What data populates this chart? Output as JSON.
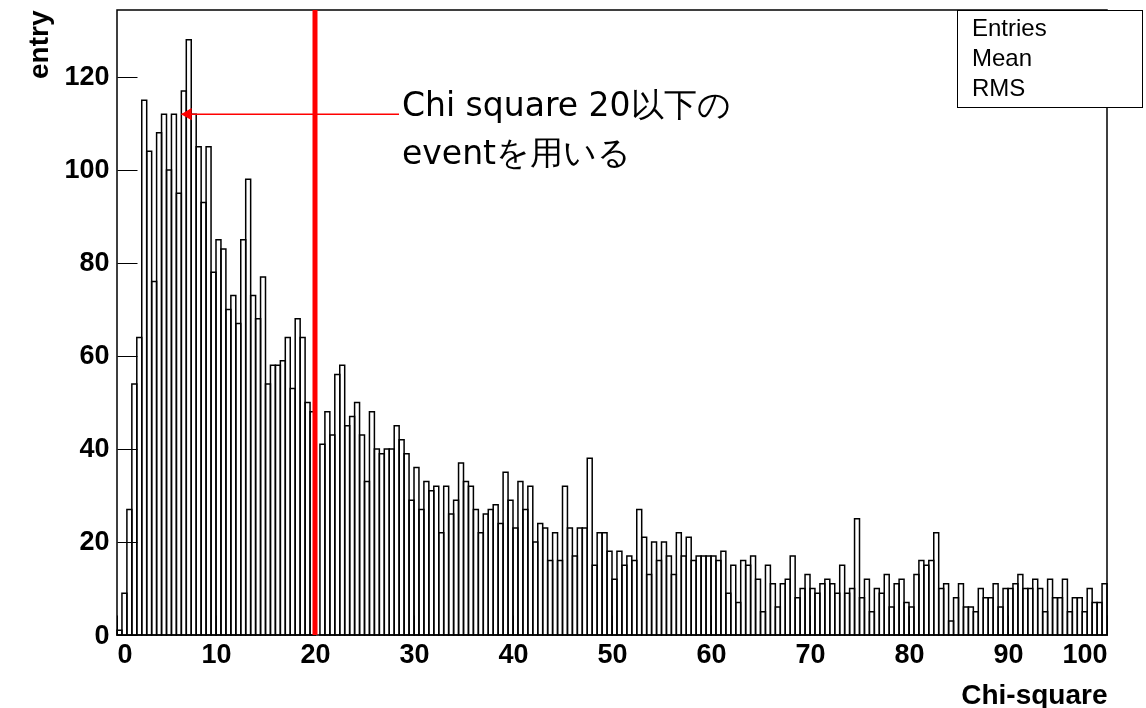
{
  "chart_data": {
    "type": "histogram",
    "xlabel": "Chi-square",
    "ylabel": "entry",
    "bins": [
      0,
      0.5,
      1,
      1.5,
      2,
      2.5,
      3,
      3.5,
      4,
      4.5,
      5,
      5.5,
      6,
      6.5,
      7,
      7.5,
      8,
      8.5,
      9,
      9.5,
      10,
      10.5,
      11,
      11.5,
      12,
      12.5,
      13,
      13.5,
      14,
      14.5,
      15,
      15.5,
      16,
      16.5,
      17,
      17.5,
      18,
      18.5,
      19,
      19.5,
      20,
      20.5,
      21,
      21.5,
      22,
      22.5,
      23,
      23.5,
      24,
      24.5,
      25,
      25.5,
      26,
      26.5,
      27,
      27.5,
      28,
      28.5,
      29,
      29.5,
      30,
      30.5,
      31,
      31.5,
      32,
      32.5,
      33,
      33.5,
      34,
      34.5,
      35,
      35.5,
      36,
      36.5,
      37,
      37.5,
      38,
      38.5,
      39,
      39.5,
      40,
      40.5,
      41,
      41.5,
      42,
      42.5,
      43,
      43.5,
      44,
      44.5,
      45,
      45.5,
      46,
      46.5,
      47,
      47.5,
      48,
      48.5,
      49,
      49.5,
      50,
      50.5,
      51,
      51.5,
      52,
      52.5,
      53,
      53.5,
      54,
      54.5,
      55,
      55.5,
      56,
      56.5,
      57,
      57.5,
      58,
      58.5,
      59,
      59.5,
      60,
      60.5,
      61,
      61.5,
      62,
      62.5,
      63,
      63.5,
      64,
      64.5,
      65,
      65.5,
      66,
      66.5,
      67,
      67.5,
      68,
      68.5,
      69,
      69.5,
      70,
      70.5,
      71,
      71.5,
      72,
      72.5,
      73,
      73.5,
      74,
      74.5,
      75,
      75.5,
      76,
      76.5,
      77,
      77.5,
      78,
      78.5,
      79,
      79.5,
      80,
      80.5,
      81,
      81.5,
      82,
      82.5,
      83,
      83.5,
      84,
      84.5,
      85,
      85.5,
      86,
      86.5,
      87,
      87.5,
      88,
      88.5,
      89,
      89.5,
      90,
      90.5,
      91,
      91.5,
      92,
      92.5,
      93,
      93.5,
      94,
      94.5,
      95,
      95.5,
      96,
      96.5,
      97,
      97.5,
      98,
      98.5,
      99,
      99.5,
      100
    ],
    "values": [
      1,
      9,
      27,
      54,
      64,
      115,
      104,
      76,
      108,
      112,
      100,
      112,
      95,
      117,
      128,
      112,
      105,
      93,
      105,
      78,
      85,
      83,
      70,
      73,
      67,
      85,
      98,
      73,
      68,
      77,
      54,
      58,
      58,
      59,
      64,
      53,
      68,
      64,
      50,
      48,
      null,
      41,
      48,
      43,
      56,
      58,
      45,
      47,
      50,
      43,
      33,
      48,
      40,
      39,
      40,
      40,
      45,
      42,
      39,
      29,
      36,
      27,
      33,
      31,
      32,
      22,
      32,
      26,
      29,
      37,
      33,
      32,
      27,
      22,
      26,
      27,
      28,
      24,
      35,
      29,
      23,
      33,
      27,
      32,
      20,
      24,
      23,
      16,
      22,
      16,
      32,
      23,
      17,
      23,
      23,
      38,
      15,
      22,
      22,
      18,
      12,
      18,
      15,
      17,
      16,
      27,
      21,
      13,
      20,
      16,
      20,
      17,
      13,
      22,
      17,
      21,
      16,
      17,
      17,
      17,
      17,
      16,
      18,
      9,
      15,
      7,
      16,
      15,
      17,
      12,
      5,
      15,
      11,
      6,
      11,
      12,
      17,
      8,
      10,
      13,
      10,
      9,
      11,
      12,
      11,
      9,
      15,
      9,
      10,
      25,
      8,
      12,
      5,
      10,
      9,
      13,
      6,
      11,
      12,
      7,
      6,
      13,
      16,
      15,
      16,
      22,
      10,
      11,
      3,
      8,
      11,
      6,
      6,
      5,
      10,
      8,
      8,
      11,
      6,
      10,
      10,
      11,
      13,
      10,
      10,
      12,
      10,
      5,
      12,
      8,
      8,
      12,
      5,
      8,
      8,
      5,
      10,
      7,
      7,
      11
    ],
    "color": "#000000",
    "xlim": [
      0,
      100
    ],
    "xticks": [
      0,
      10,
      20,
      30,
      40,
      50,
      60,
      70,
      80,
      90,
      100
    ],
    "ylim": [
      0,
      134.4
    ],
    "yticks": [
      0,
      20,
      40,
      60,
      80,
      100,
      120
    ],
    "ref_lines": [
      {
        "axis": "x",
        "value": 20,
        "color": "#ff0000"
      }
    ],
    "annotations": [
      "Entries",
      "Mean",
      "RMS",
      {
        "text": "Chi square 20以下の\neventを用いる",
        "x": 6.5,
        "y": 112
      }
    ]
  }
}
